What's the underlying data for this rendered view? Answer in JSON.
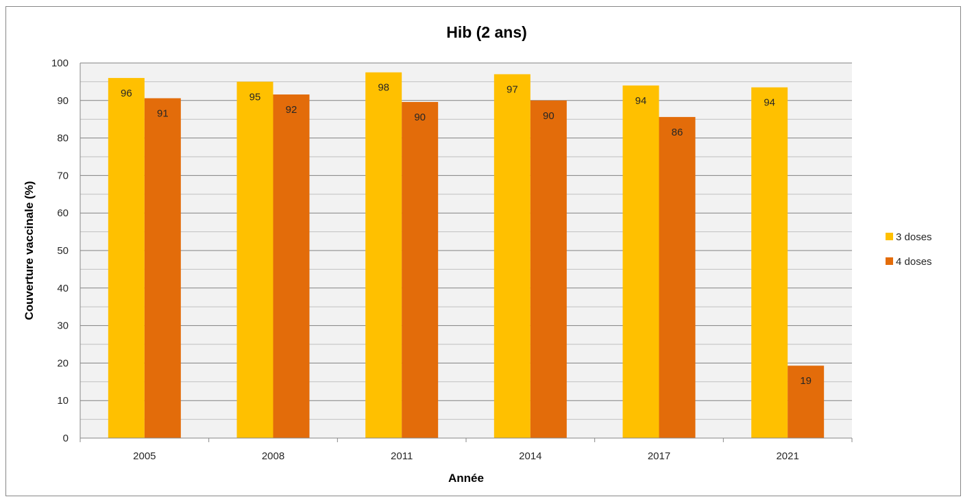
{
  "chart_data": {
    "type": "bar",
    "title": "Hib (2 ans)",
    "xlabel": "Année",
    "ylabel": "Couverture vaccinale (%)",
    "categories": [
      "2005",
      "2008",
      "2011",
      "2014",
      "2017",
      "2021"
    ],
    "series": [
      {
        "name": "3 doses",
        "color": "#FFC000",
        "values": [
          96,
          95,
          97.5,
          97,
          94,
          93.5
        ],
        "labels": [
          "96",
          "95",
          "98",
          "97",
          "94",
          "94"
        ]
      },
      {
        "name": "4 doses",
        "color": "#E36C0A",
        "values": [
          90.6,
          91.6,
          89.6,
          90,
          85.6,
          19.3
        ],
        "labels": [
          "91",
          "92",
          "90",
          "90",
          "86",
          "19"
        ]
      }
    ],
    "ylim": [
      0,
      100
    ],
    "yticks": [
      0,
      10,
      20,
      30,
      40,
      50,
      60,
      70,
      80,
      90,
      100
    ],
    "grid": true,
    "legend_position": "right"
  }
}
